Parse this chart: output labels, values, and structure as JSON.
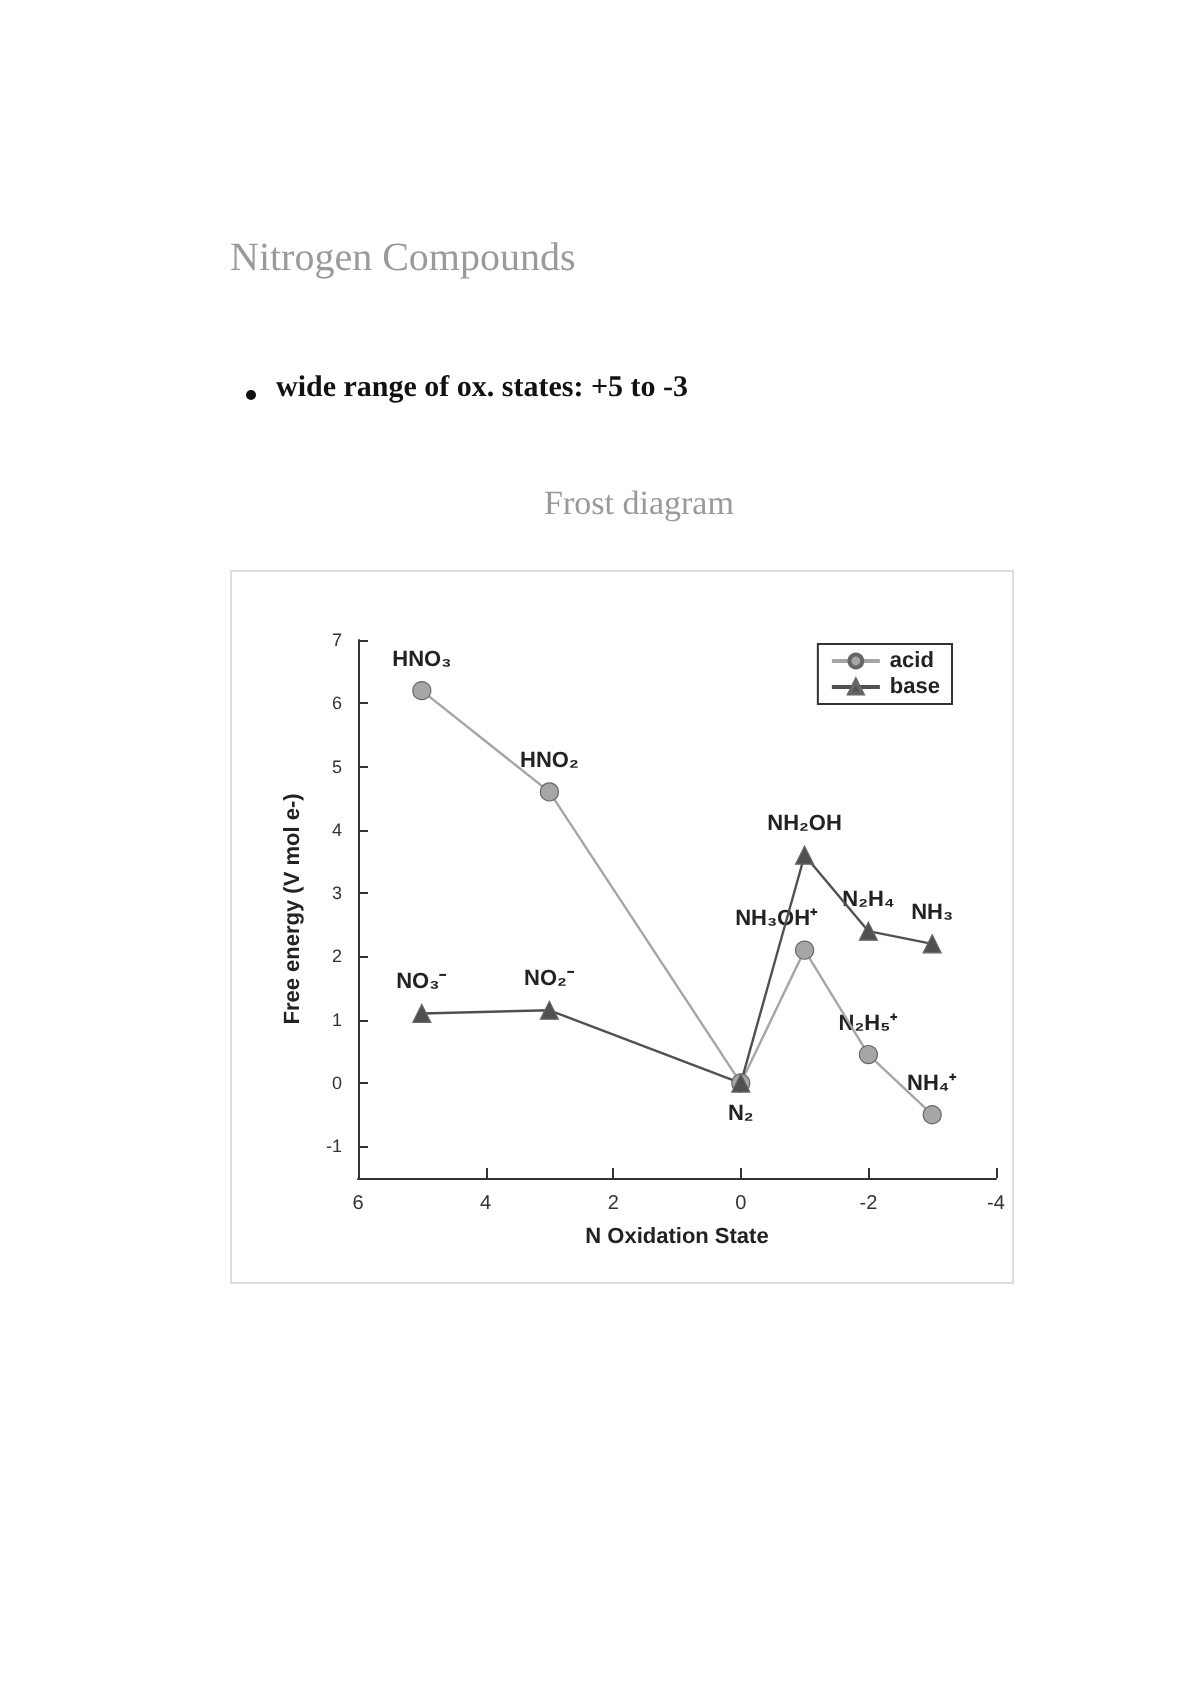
{
  "chart_data": {
    "type": "line",
    "title": "Nitrogen Compounds",
    "subtitle": "Frost diagram",
    "xlabel": "N Oxidation State",
    "ylabel": "Free energy (V mol e-)",
    "xlim": [
      6,
      -4
    ],
    "xticks": [
      6,
      4,
      2,
      0,
      -2,
      -4
    ],
    "ylim": [
      -1.5,
      7
    ],
    "yticks": [
      -1,
      0,
      1,
      2,
      3,
      4,
      5,
      6,
      7
    ],
    "grid": false,
    "legend": "top right",
    "series": [
      {
        "name": "acid",
        "color": "#a6a6a6",
        "marker": "circle",
        "x": [
          5,
          3,
          0,
          -1,
          -2,
          -3
        ],
        "values": [
          6.2,
          4.6,
          0,
          2.1,
          0.45,
          -0.5
        ]
      },
      {
        "name": "base",
        "color": "#505050",
        "marker": "triangle",
        "x": [
          5,
          3,
          0,
          -1,
          -2,
          -3
        ],
        "values": [
          1.1,
          1.15,
          0,
          3.6,
          2.4,
          2.2
        ]
      }
    ],
    "annotations": [
      "wide range of ox. states: +5 to -3",
      {
        "text": "HNO₃",
        "x": 5,
        "y": 6.2
      },
      {
        "text": "HNO₂",
        "x": 3,
        "y": 4.6
      },
      {
        "text": "NO₃⁻",
        "x": 5,
        "y": 1.1
      },
      {
        "text": "NO₂⁻",
        "x": 3,
        "y": 1.15
      },
      {
        "text": "N₂",
        "x": 0,
        "y": 0
      },
      {
        "text": "NH₂OH",
        "x": -1,
        "y": 3.6
      },
      {
        "text": "N₂H₄",
        "x": -2,
        "y": 2.4
      },
      {
        "text": "NH₃",
        "x": -3,
        "y": 2.2
      },
      {
        "text": "NH₃OH⁺",
        "x": -1,
        "y": 2.1
      },
      {
        "text": "N₂H₅⁺",
        "x": -2,
        "y": 0.45
      },
      {
        "text": "NH₄⁺",
        "x": -3,
        "y": -0.5
      }
    ]
  }
}
